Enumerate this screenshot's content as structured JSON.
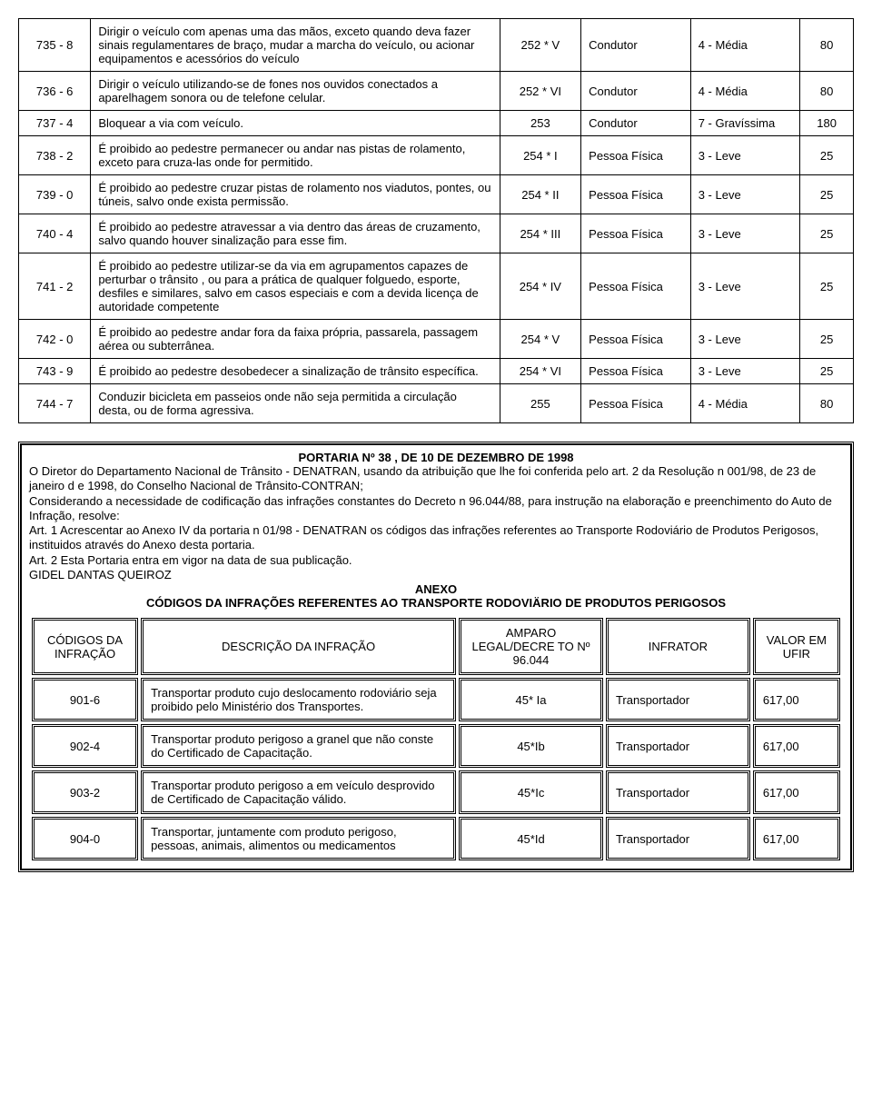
{
  "main_rows": [
    {
      "code": "735 - 8",
      "desc": "Dirigir o veículo com apenas uma das mãos, exceto quando deva fazer sinais regulamentares de braço, mudar a marcha do veículo, ou acionar equipamentos e acessórios do veículo",
      "legal": "252 * V",
      "infrator": "Condutor",
      "grav": "4 - Média",
      "val": "80"
    },
    {
      "code": "736 - 6",
      "desc": "Dirigir o veículo utilizando-se de fones nos ouvidos conectados a aparelhagem sonora ou de telefone celular.",
      "legal": "252 * VI",
      "infrator": "Condutor",
      "grav": "4 - Média",
      "val": "80"
    },
    {
      "code": "737 - 4",
      "desc": "Bloquear a via com veículo.",
      "legal": "253",
      "infrator": "Condutor",
      "grav": "7 - Gravíssima",
      "val": "180"
    },
    {
      "code": "738 - 2",
      "desc": "É proibido ao pedestre permanecer ou andar nas pistas de rolamento, exceto para cruza-las onde for permitido.",
      "legal": "254 * I",
      "infrator": "Pessoa Física",
      "grav": "3 - Leve",
      "val": "25"
    },
    {
      "code": "739 - 0",
      "desc": "É proibido ao pedestre cruzar pistas de rolamento nos viadutos, pontes, ou túneis, salvo onde exista permissão.",
      "legal": "254 * II",
      "infrator": "Pessoa Física",
      "grav": "3 - Leve",
      "val": "25"
    },
    {
      "code": "740 - 4",
      "desc": "É proibido ao pedestre atravessar a via dentro das áreas de cruzamento, salvo quando houver sinalização para esse fim.",
      "legal": "254 * III",
      "infrator": "Pessoa Física",
      "grav": "3 - Leve",
      "val": "25"
    },
    {
      "code": "741 - 2",
      "desc": "É proibido ao pedestre utilizar-se da via em agrupamentos capazes de perturbar o trânsito , ou para a prática de qualquer folguedo, esporte, desfiles e similares, salvo em casos especiais e com a devida licença de autoridade competente",
      "legal": "254 * IV",
      "infrator": "Pessoa Física",
      "grav": "3 - Leve",
      "val": "25"
    },
    {
      "code": "742 - 0",
      "desc": "É proibido ao pedestre andar fora da faixa própria, passarela, passagem aérea ou subterrânea.",
      "legal": "254 * V",
      "infrator": "Pessoa Física",
      "grav": "3 - Leve",
      "val": "25"
    },
    {
      "code": "743 - 9",
      "desc": "É proibido ao pedestre desobedecer a sinalização de trânsito específica.",
      "legal": "254 * VI",
      "infrator": "Pessoa Física",
      "grav": "3 - Leve",
      "val": "25"
    },
    {
      "code": "744 - 7",
      "desc": "Conduzir bicicleta em passeios onde não seja permitida a circulação desta, ou de forma agressiva.",
      "legal": "255",
      "infrator": "Pessoa Física",
      "grav": "4 - Média",
      "val": "80"
    }
  ],
  "portaria": {
    "title": "PORTARIA Nº 38 , DE 10 DE DEZEMBRO DE 1998",
    "body_lines": [
      "O Diretor do Departamento Nacional de Trânsito - DENATRAN, usando da atribuição que lhe foi conferida pelo art. 2 da Resolução n 001/98, de 23 de janeiro d e 1998, do Conselho Nacional de Trânsito-CONTRAN;",
      "Considerando a necessidade de codificação das infrações constantes do Decreto n 96.044/88, para instrução na elaboração e preenchimento do Auto de Infração, resolve:",
      "Art. 1 Acrescentar ao Anexo IV da portaria n 01/98 - DENATRAN os códigos das infrações referentes ao Transporte Rodoviário de Produtos Perigosos, instituidos através do Anexo desta portaria.",
      "Art. 2 Esta Portaria entra em vigor na data de sua publicação.",
      "GIDEL DANTAS QUEIROZ"
    ],
    "anexo_label": "ANEXO",
    "anexo_title": "CÓDIGOS DA INFRAÇÕES REFERENTES AO TRANSPORTE RODOVIÄRIO DE PRODUTOS PERIGOSOS"
  },
  "anexo_headers": {
    "c1": "CÓDIGOS DA INFRAÇÃO",
    "c2": "DESCRIÇÃO DA INFRAÇÃO",
    "c3": "AMPARO LEGAL/DECRE TO Nº 96.044",
    "c4": "INFRATOR",
    "c5": "VALOR EM UFIR"
  },
  "anexo_rows": [
    {
      "code": "901-6",
      "desc": "Transportar produto cujo deslocamento rodoviário seja proibido pelo Ministério dos Transportes.",
      "legal": "45* Ia",
      "infrator": "Transportador",
      "val": "617,00"
    },
    {
      "code": "902-4",
      "desc": "Transportar produto perigoso a granel que não conste do Certificado de Capacitação.",
      "legal": "45*Ib",
      "infrator": "Transportador",
      "val": "617,00"
    },
    {
      "code": "903-2",
      "desc": "Transportar produto perigoso a em veículo desprovido de Certificado de Capacitação válido.",
      "legal": "45*Ic",
      "infrator": "Transportador",
      "val": "617,00"
    },
    {
      "code": "904-0",
      "desc": "Transportar, juntamente com produto perigoso, pessoas, animais, alimentos ou medicamentos",
      "legal": "45*Id",
      "infrator": "Transportador",
      "val": "617,00"
    }
  ]
}
